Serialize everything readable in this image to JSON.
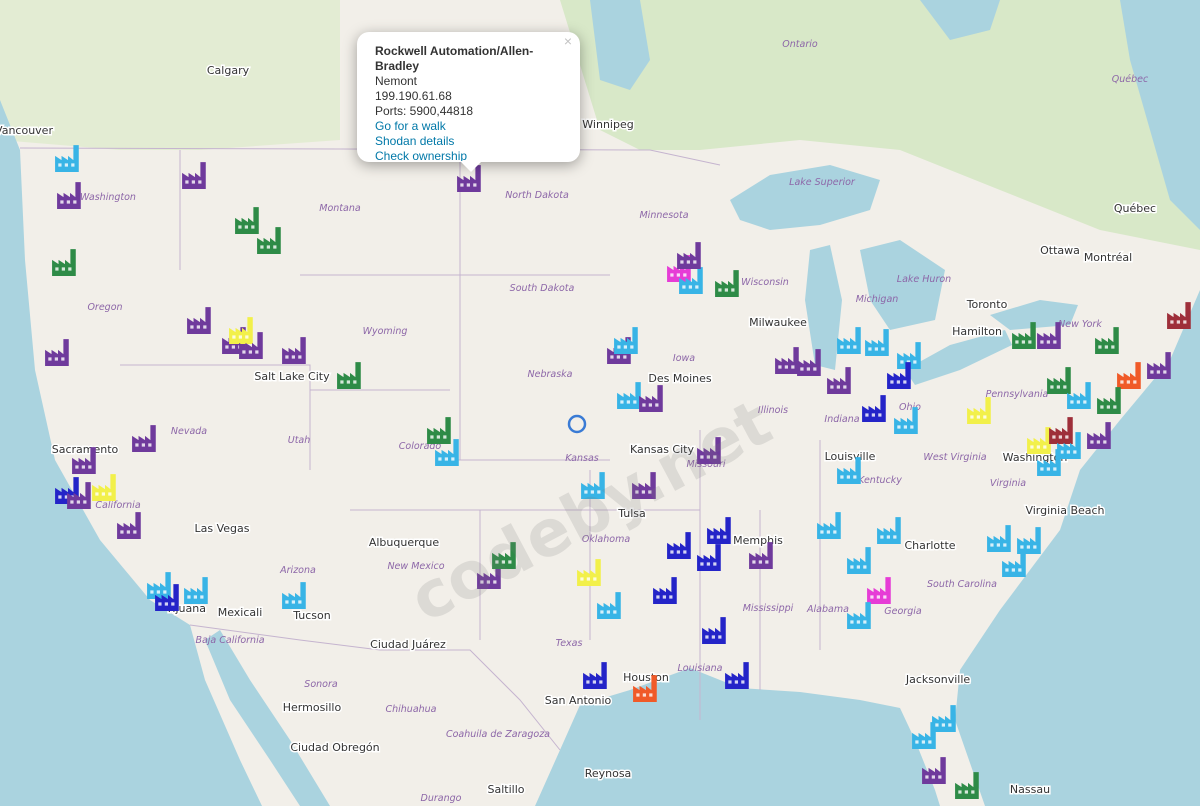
{
  "popup": {
    "title": "Rockwell Automation/Allen-Bradley",
    "close": "×",
    "lines": [
      "Nemont",
      "199.190.61.68",
      "Ports: 5900,44818"
    ],
    "links": [
      "Go for a walk",
      "Shodan details",
      "Check ownership"
    ]
  },
  "cities": [
    "Calgary",
    "Vancouver",
    "Winnipeg",
    "Ottawa",
    "Montréal",
    "Québec",
    "Toronto",
    "Hamilton",
    "Milwaukee",
    "Des Moines",
    "Kansas City",
    "Tulsa",
    "Memphis",
    "Charlotte",
    "Virginia Beach",
    "Washington",
    "Louisville",
    "Salt Lake City",
    "Sacramento",
    "Las Vegas",
    "Albuquerque",
    "Tucson",
    "Mexicali",
    "Tijuana",
    "Ciudad Juárez",
    "San Antonio",
    "Houston",
    "Jacksonville",
    "Hermosillo",
    "Ciudad Obregón",
    "Saltillo",
    "Reynosa",
    "Nassau"
  ],
  "regions": [
    "Washington",
    "Montana",
    "North Dakota",
    "Minnesota",
    "South Dakota",
    "Wyoming",
    "Oregon",
    "Nebraska",
    "Iowa",
    "Wisconsin",
    "Michigan",
    "Illinois",
    "Indiana",
    "Ohio",
    "Pennsylvania",
    "New York",
    "Nevada",
    "Utah",
    "Colorado",
    "Kansas",
    "Missouri",
    "Kentucky",
    "West Virginia",
    "Virginia",
    "South Carolina",
    "Georgia",
    "Alabama",
    "Mississippi",
    "Louisiana",
    "Texas",
    "Oklahoma",
    "New Mexico",
    "Arizona",
    "California",
    "Baja California",
    "Sonora",
    "Chihuahua",
    "Coahuila de Zaragoza",
    "Durango",
    "Lake Superior",
    "Lake Huron",
    "Ontario",
    "Québec"
  ],
  "watermark": "codeby.net"
}
